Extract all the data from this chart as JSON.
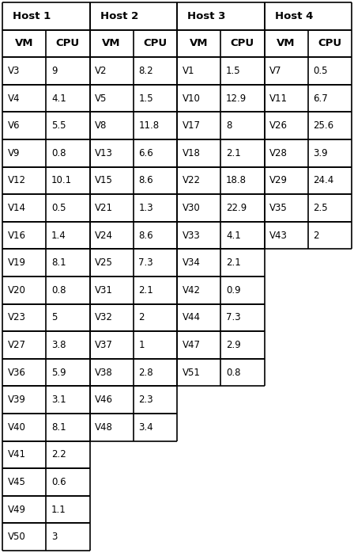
{
  "hosts": [
    "Host 1",
    "Host 2",
    "Host 3",
    "Host 4"
  ],
  "host1": {
    "vms": [
      "V3",
      "V4",
      "V6",
      "V9",
      "V12",
      "V14",
      "V16",
      "V19",
      "V20",
      "V23",
      "V27",
      "V36",
      "V39",
      "V40",
      "V41",
      "V45",
      "V49",
      "V50"
    ],
    "cpus": [
      "9",
      "4.1",
      "5.5",
      "0.8",
      "10.1",
      "0.5",
      "1.4",
      "8.1",
      "0.8",
      "5",
      "3.8",
      "5.9",
      "3.1",
      "8.1",
      "2.2",
      "0.6",
      "1.1",
      "3"
    ]
  },
  "host2": {
    "vms": [
      "V2",
      "V5",
      "V8",
      "V13",
      "V15",
      "V21",
      "V24",
      "V25",
      "V31",
      "V32",
      "V37",
      "V38",
      "V46",
      "V48"
    ],
    "cpus": [
      "8.2",
      "1.5",
      "11.8",
      "6.6",
      "8.6",
      "1.3",
      "8.6",
      "7.3",
      "2.1",
      "2",
      "1",
      "2.8",
      "2.3",
      "3.4"
    ]
  },
  "host3": {
    "vms": [
      "V1",
      "V10",
      "V17",
      "V18",
      "V22",
      "V30",
      "V33",
      "V34",
      "V42",
      "V44",
      "V47",
      "V51"
    ],
    "cpus": [
      "1.5",
      "12.9",
      "8",
      "2.1",
      "18.8",
      "22.9",
      "4.1",
      "2.1",
      "0.9",
      "7.3",
      "2.9",
      "0.8"
    ]
  },
  "host4": {
    "vms": [
      "V7",
      "V11",
      "V26",
      "V28",
      "V29",
      "V35",
      "V43"
    ],
    "cpus": [
      "0.5",
      "6.7",
      "25.6",
      "3.9",
      "24.4",
      "2.5",
      "2"
    ]
  },
  "bg_color": "#ffffff",
  "line_color": "#000000",
  "text_color": "#000000",
  "font_size": 8.5,
  "header_font_size": 9.5,
  "fig_width": 4.48,
  "fig_height": 6.98,
  "dpi": 100
}
